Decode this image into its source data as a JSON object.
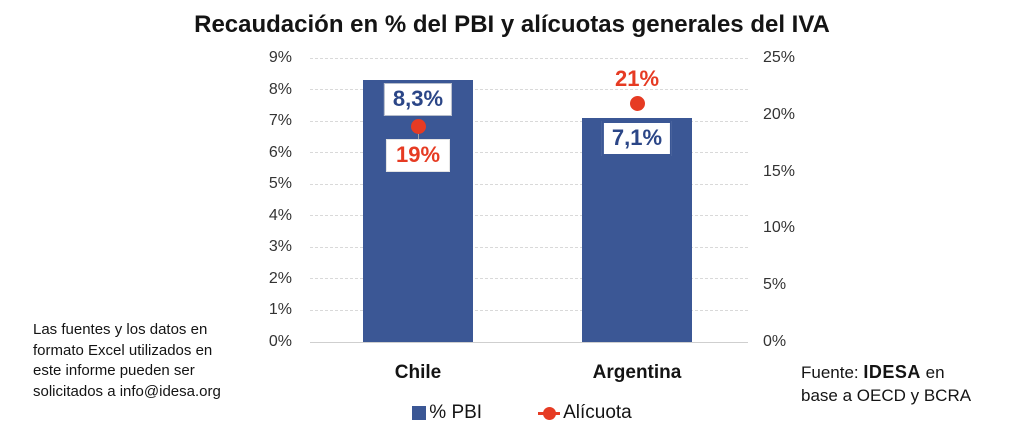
{
  "colors": {
    "bar_blue": "#3b5795",
    "alicuota_red": "#e63b23",
    "label_navy": "#2b4687"
  },
  "footer_note": {
    "lines": [
      "Las fuentes y los datos en",
      "formato Excel utilizados en",
      "este informe pueden ser",
      "solicitados a info@idesa.org"
    ]
  },
  "source": {
    "prefix": "Fuente: ",
    "org": "IDESA",
    "suffix": " en",
    "line2": "base a OECD y BCRA"
  },
  "chart_data": {
    "type": "bar",
    "title": "Recaudación en % del PBI y alícuotas generales del IVA",
    "categories": [
      "Chile",
      "Argentina"
    ],
    "series": [
      {
        "name": "% PBI",
        "axis": "left",
        "values": [
          8.3,
          7.1
        ],
        "labels": [
          "8,3%",
          "7,1%"
        ],
        "color": "#3b5795",
        "marker": "square"
      },
      {
        "name": "Alícuota",
        "axis": "right",
        "values": [
          19,
          21
        ],
        "labels": [
          "19%",
          "21%"
        ],
        "color": "#e63b23",
        "marker": "circle"
      }
    ],
    "left_axis": {
      "min": 0,
      "max": 9,
      "step": 1,
      "ticks": [
        "0%",
        "1%",
        "2%",
        "3%",
        "4%",
        "5%",
        "6%",
        "7%",
        "8%",
        "9%"
      ]
    },
    "right_axis": {
      "min": 0,
      "max": 25,
      "step": 5,
      "ticks": [
        "0%",
        "5%",
        "10%",
        "15%",
        "20%",
        "25%"
      ]
    },
    "grid": "horizontal-dashed",
    "legend_position": "bottom"
  }
}
